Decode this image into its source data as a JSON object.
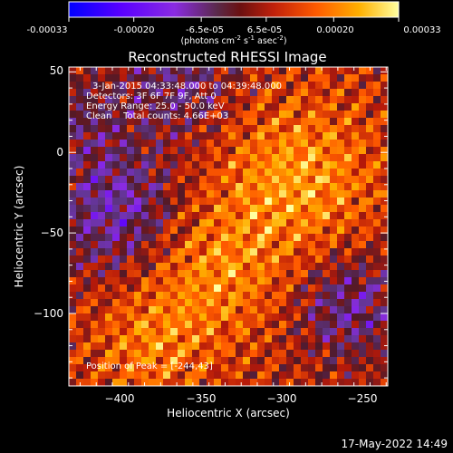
{
  "colorbar": {
    "tick_labels": [
      "-0.00033",
      "-0.00020",
      "-6.5e-05",
      "6.5e-05",
      "0.00020",
      "0.00033"
    ],
    "tick_values": [
      -0.00033,
      -0.0002,
      -6.5e-05,
      6.5e-05,
      0.0002,
      0.00033
    ],
    "range": [
      -0.00033,
      0.00033
    ],
    "units_label": "(photons cm",
    "units_sup1": "-2",
    "units_mid": " s",
    "units_sup2": "-1",
    "units_end": " asec",
    "units_sup3": "-2",
    "units_close": ")"
  },
  "annotations": {
    "time_range": "3-Jan-2015 04:33:48.000 to 04:39:48.000",
    "detectors": "Detectors: 3F 6F 7F 9F, Att 0",
    "energy_range": "Energy Range: 25.0 - 50.0 keV",
    "clean_counts": "Clean    Total counts: 4.66E+03",
    "peak_position": "Position of Peak = [-244,43]"
  },
  "footer": {
    "timestamp": "17-May-2022 14:49"
  },
  "colors": {
    "background": "#000000",
    "axis": "#ffffff",
    "colormap": [
      "#0000ff",
      "#8a2be2",
      "#6a3d8f",
      "#5a2a2a",
      "#c0200b",
      "#ff5a00",
      "#ffb000",
      "#ffff99"
    ]
  },
  "chart_data": {
    "type": "heatmap",
    "title": "Reconstructed RHESSI Image",
    "xlabel": "Heliocentric X (arcsec)",
    "ylabel": "Heliocentric Y (arcsec)",
    "xlim": [
      -432,
      -234
    ],
    "ylim": [
      -145,
      53
    ],
    "x_ticks": [
      -400,
      -350,
      -300,
      -250
    ],
    "x_tick_labels": [
      "−400",
      "−350",
      "−300",
      "−250"
    ],
    "y_ticks": [
      50,
      0,
      -50,
      -100
    ],
    "y_tick_labels": [
      "50",
      "0",
      "−50",
      "−100"
    ],
    "grid": false,
    "peak": [
      -244,
      43
    ],
    "value_range": [
      -0.00033,
      0.00033
    ],
    "pixel_size_arcsec": 4,
    "note_values": "flux map, color-scaled between value_range"
  }
}
